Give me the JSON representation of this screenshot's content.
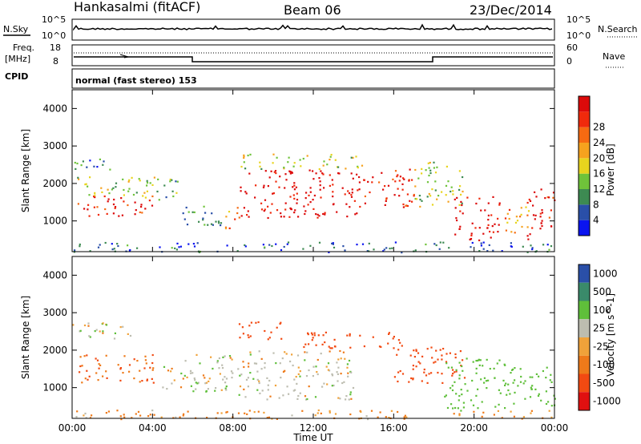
{
  "header": {
    "station": "Hankasalmi (fitACF)",
    "beam": "Beam 06",
    "date": "23/Dec/2014"
  },
  "top_panels": {
    "nsky_label": "N.Sky",
    "nsearch_label": "N.Search",
    "noise_ticks": [
      "10^5",
      "10^0"
    ],
    "freq_label": "Freq.",
    "freq_unit": "[MHz]",
    "freq_ticks": [
      "18",
      "8"
    ],
    "nave_label": "Nave",
    "nave_ticks": [
      "60",
      "0"
    ],
    "cpid_label": "CPID",
    "cpid_text": "normal (fast stereo) 153"
  },
  "colors": {
    "power": [
      "#0a14f0",
      "#2a4fa8",
      "#3d8a52",
      "#6fc33a",
      "#e8d41e",
      "#f6a21e",
      "#f66a12",
      "#f02a0c",
      "#dc0a0a"
    ],
    "velocity": [
      "#2a4fa8",
      "#3a8a6a",
      "#5fbf3a",
      "#bdbdb0",
      "#f0a23a",
      "#ee7a1a",
      "#f24a12",
      "#e01010"
    ]
  },
  "chart_data": [
    {
      "type": "heatmap",
      "quantity": "Power",
      "ylabel": "Slant Range [km]",
      "xlabel": "Time UT",
      "x_ticks": [
        "00:00",
        "04:00",
        "08:00",
        "12:00",
        "16:00",
        "20:00",
        "00:00"
      ],
      "y_ticks": [
        "1000",
        "2000",
        "3000",
        "4000"
      ],
      "ylim": [
        180,
        4500
      ],
      "xlim_hours": [
        0,
        24
      ],
      "colorbar": {
        "label": "Power [dB]",
        "ticks": [
          "4",
          "8",
          "12",
          "16",
          "20",
          "24",
          "28"
        ],
        "range": [
          0,
          30
        ]
      },
      "regions": [
        {
          "t": [
            0.2,
            4.1
          ],
          "r": [
            1150,
            1700
          ],
          "v": 27
        },
        {
          "t": [
            0.2,
            4.1
          ],
          "r": [
            1600,
            2200
          ],
          "v": 13
        },
        {
          "t": [
            0.0,
            2.0
          ],
          "r": [
            2300,
            2700
          ],
          "v": 7
        },
        {
          "t": [
            4.2,
            5.4
          ],
          "r": [
            1500,
            2150
          ],
          "v": 10
        },
        {
          "t": [
            5.4,
            7.6
          ],
          "r": [
            900,
            1500
          ],
          "v": 8
        },
        {
          "t": [
            7.6,
            8.4
          ],
          "r": [
            780,
            1450
          ],
          "v": 21
        },
        {
          "t": [
            8.3,
            14.5
          ],
          "r": [
            1100,
            2400
          ],
          "v": 29
        },
        {
          "t": [
            8.3,
            14.5
          ],
          "r": [
            2400,
            2800
          ],
          "v": 14
        },
        {
          "t": [
            14.5,
            17.0
          ],
          "r": [
            1350,
            2400
          ],
          "v": 26
        },
        {
          "t": [
            17.0,
            19.5
          ],
          "r": [
            1400,
            2600
          ],
          "v": 13
        },
        {
          "t": [
            19.0,
            21.3
          ],
          "r": [
            500,
            1700
          ],
          "v": 28
        },
        {
          "t": [
            21.3,
            22.7
          ],
          "r": [
            700,
            1500
          ],
          "v": 20
        },
        {
          "t": [
            22.6,
            24.0
          ],
          "r": [
            500,
            1900
          ],
          "v": 27
        },
        {
          "t": [
            0.0,
            24.0
          ],
          "r": [
            180,
            450
          ],
          "v": 6
        }
      ]
    },
    {
      "type": "heatmap",
      "quantity": "Velocity",
      "ylabel": "Slant Range [km]",
      "xlabel": "Time UT",
      "x_ticks": [
        "00:00",
        "04:00",
        "08:00",
        "12:00",
        "16:00",
        "20:00",
        "00:00"
      ],
      "y_ticks": [
        "1000",
        "2000",
        "3000",
        "4000"
      ],
      "ylim": [
        180,
        4500
      ],
      "xlim_hours": [
        0,
        24
      ],
      "colorbar": {
        "label": "Velocity [m s^-1]",
        "ticks": [
          "1000",
          "500",
          "100",
          "25",
          "-25",
          "-100",
          "-500",
          "-1000"
        ],
        "range": [
          -1200,
          1200
        ]
      },
      "regions": [
        {
          "t": [
            0.2,
            4.1
          ],
          "r": [
            1150,
            1900
          ],
          "v": -300
        },
        {
          "t": [
            0.0,
            3.0
          ],
          "r": [
            2300,
            2750
          ],
          "v": 0
        },
        {
          "t": [
            4.2,
            8.0
          ],
          "r": [
            900,
            1900
          ],
          "v": 0
        },
        {
          "t": [
            8.2,
            14.0
          ],
          "r": [
            700,
            2000
          ],
          "v": 0
        },
        {
          "t": [
            8.2,
            10.5
          ],
          "r": [
            2300,
            2800
          ],
          "v": -400
        },
        {
          "t": [
            11.0,
            16.5
          ],
          "r": [
            2050,
            2500
          ],
          "v": -600
        },
        {
          "t": [
            16.0,
            19.5
          ],
          "r": [
            1100,
            2100
          ],
          "v": -450
        },
        {
          "t": [
            18.5,
            21.5
          ],
          "r": [
            400,
            1800
          ],
          "v": 200
        },
        {
          "t": [
            21.5,
            24.0
          ],
          "r": [
            500,
            1600
          ],
          "v": 200
        },
        {
          "t": [
            0.0,
            24.0
          ],
          "r": [
            180,
            420
          ],
          "v": -100
        }
      ]
    }
  ]
}
